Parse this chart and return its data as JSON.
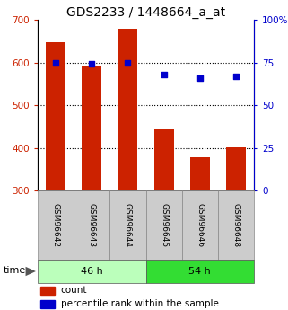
{
  "title": "GDS2233 / 1448664_a_at",
  "samples": [
    "GSM96642",
    "GSM96643",
    "GSM96644",
    "GSM96645",
    "GSM96646",
    "GSM96648"
  ],
  "counts": [
    648,
    593,
    678,
    443,
    377,
    401
  ],
  "percentiles": [
    75,
    74,
    75,
    68,
    66,
    67
  ],
  "groups": [
    {
      "label": "46 h",
      "indices": [
        0,
        1,
        2
      ],
      "color": "#bbffbb"
    },
    {
      "label": "54 h",
      "indices": [
        3,
        4,
        5
      ],
      "color": "#33dd33"
    }
  ],
  "left_ylim": [
    300,
    700
  ],
  "right_ylim": [
    0,
    100
  ],
  "left_yticks": [
    300,
    400,
    500,
    600,
    700
  ],
  "right_yticks": [
    0,
    25,
    50,
    75,
    100
  ],
  "right_yticklabels": [
    "0",
    "25",
    "50",
    "75",
    "100%"
  ],
  "bar_color": "#cc2200",
  "dot_color": "#0000cc",
  "bar_bottom": 300,
  "grid_values": [
    400,
    500,
    600
  ],
  "xlabel_area_color": "#cccccc",
  "legend_count_label": "count",
  "legend_pct_label": "percentile rank within the sample",
  "title_fontsize": 10,
  "tick_fontsize": 7.5,
  "sample_fontsize": 6.5,
  "group_fontsize": 8,
  "legend_fontsize": 7.5,
  "time_fontsize": 8
}
